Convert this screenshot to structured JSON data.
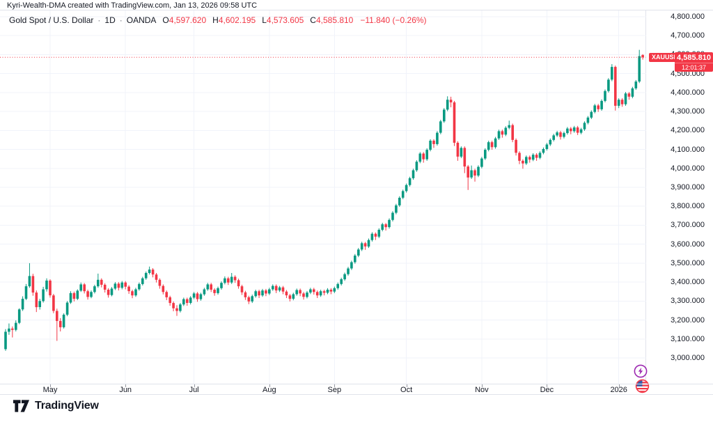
{
  "attribution": "Kyri-Wealth-DMA created with TradingView.com, Jan 13, 2026 09:58 UTC",
  "legend": {
    "title": "Gold Spot / U.S. Dollar",
    "separator": "·",
    "interval": "1D",
    "exchange": "OANDA",
    "o_label": "O",
    "o_value": "4,597.620",
    "h_label": "H",
    "h_value": "4,602.195",
    "l_label": "L",
    "l_value": "4,573.605",
    "c_label": "C",
    "c_value": "4,585.810",
    "change": "−11.840 (−0.26%)"
  },
  "price_tag": {
    "symbol": "XAUUSD",
    "price": "4,585.810",
    "countdown": "12:01:37"
  },
  "logo": {
    "text": "TradingView"
  },
  "icons": {
    "lightning": "lightning-event-marker",
    "flag": "us-economic-event-marker"
  },
  "colors": {
    "up": "#089981",
    "down": "#F23645",
    "accent_red": "#F23645",
    "grid": "#F0F3FA",
    "border": "#E0E3EB",
    "text": "#131722",
    "tick": "#9598A1",
    "purple": "#9C27B0",
    "flag_blue": "#3B5CA8"
  },
  "chart_data": {
    "type": "candlestick",
    "title": "Gold Spot / U.S. Dollar",
    "symbol": "XAUUSD",
    "interval": "1D",
    "exchange": "OANDA",
    "last_price": 4585.81,
    "last_change": -11.84,
    "last_change_pct": -0.26,
    "y_axis": {
      "min": 3000,
      "max": 4800,
      "step": 100,
      "labels": [
        "4,800.000",
        "4,700.000",
        "4,600.000",
        "4,500.000",
        "4,400.000",
        "4,300.000",
        "4,200.000",
        "4,100.000",
        "4,000.000",
        "3,900.000",
        "3,800.000",
        "3,700.000",
        "3,600.000",
        "3,500.000",
        "3,400.000",
        "3,300.000",
        "3,200.000",
        "3,100.000",
        "3,000.000"
      ]
    },
    "x_axis": {
      "ticks": [
        {
          "label": "May",
          "index": 13
        },
        {
          "label": "Jun",
          "index": 35
        },
        {
          "label": "Jul",
          "index": 55
        },
        {
          "label": "Aug",
          "index": 77
        },
        {
          "label": "Sep",
          "index": 96
        },
        {
          "label": "Oct",
          "index": 117
        },
        {
          "label": "Nov",
          "index": 139
        },
        {
          "label": "Dec",
          "index": 158
        },
        {
          "label": "2026",
          "index": 179
        }
      ]
    },
    "candles": [
      [
        3046,
        3152,
        3038,
        3138
      ],
      [
        3138,
        3182,
        3122,
        3155
      ],
      [
        3155,
        3166,
        3108,
        3148
      ],
      [
        3148,
        3198,
        3140,
        3185
      ],
      [
        3185,
        3262,
        3178,
        3256
      ],
      [
        3256,
        3325,
        3248,
        3312
      ],
      [
        3312,
        3390,
        3305,
        3378
      ],
      [
        3378,
        3500,
        3370,
        3432
      ],
      [
        3432,
        3444,
        3328,
        3345
      ],
      [
        3345,
        3356,
        3242,
        3268
      ],
      [
        3268,
        3312,
        3255,
        3300
      ],
      [
        3300,
        3375,
        3292,
        3362
      ],
      [
        3362,
        3420,
        3350,
        3408
      ],
      [
        3408,
        3415,
        3318,
        3330
      ],
      [
        3330,
        3338,
        3236,
        3248
      ],
      [
        3248,
        3260,
        3090,
        3195
      ],
      [
        3195,
        3210,
        3140,
        3162
      ],
      [
        3162,
        3235,
        3155,
        3228
      ],
      [
        3228,
        3300,
        3220,
        3292
      ],
      [
        3292,
        3352,
        3285,
        3342
      ],
      [
        3342,
        3350,
        3298,
        3312
      ],
      [
        3312,
        3362,
        3305,
        3355
      ],
      [
        3355,
        3398,
        3348,
        3388
      ],
      [
        3388,
        3395,
        3340,
        3352
      ],
      [
        3352,
        3360,
        3308,
        3322
      ],
      [
        3322,
        3356,
        3315,
        3348
      ],
      [
        3348,
        3386,
        3340,
        3378
      ],
      [
        3378,
        3445,
        3370,
        3412
      ],
      [
        3412,
        3420,
        3372,
        3386
      ],
      [
        3386,
        3394,
        3345,
        3360
      ],
      [
        3360,
        3368,
        3318,
        3332
      ],
      [
        3332,
        3374,
        3325,
        3366
      ],
      [
        3366,
        3400,
        3358,
        3392
      ],
      [
        3392,
        3400,
        3356,
        3370
      ],
      [
        3370,
        3406,
        3362,
        3398
      ],
      [
        3398,
        3405,
        3362,
        3376
      ],
      [
        3376,
        3384,
        3338,
        3352
      ],
      [
        3352,
        3360,
        3315,
        3330
      ],
      [
        3330,
        3370,
        3322,
        3362
      ],
      [
        3362,
        3398,
        3355,
        3390
      ],
      [
        3390,
        3428,
        3382,
        3420
      ],
      [
        3420,
        3456,
        3412,
        3448
      ],
      [
        3448,
        3482,
        3440,
        3466
      ],
      [
        3466,
        3474,
        3425,
        3440
      ],
      [
        3440,
        3448,
        3398,
        3412
      ],
      [
        3412,
        3420,
        3365,
        3380
      ],
      [
        3380,
        3388,
        3335,
        3348
      ],
      [
        3348,
        3356,
        3305,
        3320
      ],
      [
        3320,
        3328,
        3275,
        3290
      ],
      [
        3290,
        3298,
        3246,
        3262
      ],
      [
        3262,
        3278,
        3222,
        3248
      ],
      [
        3248,
        3290,
        3240,
        3282
      ],
      [
        3282,
        3318,
        3274,
        3310
      ],
      [
        3310,
        3318,
        3275,
        3290
      ],
      [
        3290,
        3326,
        3282,
        3318
      ],
      [
        3318,
        3348,
        3310,
        3340
      ],
      [
        3340,
        3348,
        3296,
        3310
      ],
      [
        3310,
        3344,
        3302,
        3336
      ],
      [
        3336,
        3370,
        3328,
        3362
      ],
      [
        3362,
        3396,
        3354,
        3388
      ],
      [
        3388,
        3396,
        3348,
        3360
      ],
      [
        3360,
        3368,
        3328,
        3342
      ],
      [
        3342,
        3376,
        3334,
        3368
      ],
      [
        3368,
        3404,
        3360,
        3396
      ],
      [
        3396,
        3430,
        3388,
        3420
      ],
      [
        3420,
        3428,
        3385,
        3398
      ],
      [
        3398,
        3448,
        3390,
        3428
      ],
      [
        3428,
        3436,
        3396,
        3410
      ],
      [
        3410,
        3418,
        3365,
        3378
      ],
      [
        3378,
        3386,
        3332,
        3346
      ],
      [
        3346,
        3354,
        3306,
        3320
      ],
      [
        3320,
        3328,
        3284,
        3298
      ],
      [
        3298,
        3334,
        3290,
        3326
      ],
      [
        3326,
        3360,
        3318,
        3352
      ],
      [
        3352,
        3360,
        3316,
        3330
      ],
      [
        3330,
        3364,
        3322,
        3356
      ],
      [
        3356,
        3364,
        3326,
        3340
      ],
      [
        3340,
        3370,
        3332,
        3362
      ],
      [
        3362,
        3388,
        3354,
        3380
      ],
      [
        3380,
        3388,
        3342,
        3356
      ],
      [
        3356,
        3380,
        3348,
        3372
      ],
      [
        3372,
        3380,
        3336,
        3350
      ],
      [
        3350,
        3358,
        3316,
        3330
      ],
      [
        3330,
        3338,
        3298,
        3312
      ],
      [
        3312,
        3344,
        3304,
        3336
      ],
      [
        3336,
        3366,
        3328,
        3358
      ],
      [
        3358,
        3366,
        3326,
        3340
      ],
      [
        3340,
        3348,
        3308,
        3322
      ],
      [
        3322,
        3353,
        3314,
        3345
      ],
      [
        3345,
        3370,
        3337,
        3362
      ],
      [
        3362,
        3370,
        3334,
        3348
      ],
      [
        3348,
        3356,
        3316,
        3330
      ],
      [
        3330,
        3360,
        3322,
        3352
      ],
      [
        3352,
        3360,
        3330,
        3344
      ],
      [
        3344,
        3368,
        3336,
        3360
      ],
      [
        3360,
        3368,
        3336,
        3350
      ],
      [
        3350,
        3376,
        3342,
        3368
      ],
      [
        3368,
        3398,
        3360,
        3390
      ],
      [
        3390,
        3423,
        3382,
        3415
      ],
      [
        3415,
        3450,
        3407,
        3442
      ],
      [
        3442,
        3480,
        3434,
        3472
      ],
      [
        3472,
        3513,
        3464,
        3505
      ],
      [
        3505,
        3548,
        3497,
        3540
      ],
      [
        3540,
        3580,
        3532,
        3572
      ],
      [
        3572,
        3613,
        3564,
        3605
      ],
      [
        3605,
        3612,
        3570,
        3588
      ],
      [
        3588,
        3630,
        3580,
        3622
      ],
      [
        3622,
        3663,
        3614,
        3655
      ],
      [
        3655,
        3662,
        3622,
        3640
      ],
      [
        3640,
        3684,
        3632,
        3676
      ],
      [
        3676,
        3713,
        3668,
        3705
      ],
      [
        3705,
        3712,
        3672,
        3690
      ],
      [
        3690,
        3736,
        3682,
        3728
      ],
      [
        3728,
        3774,
        3720,
        3766
      ],
      [
        3766,
        3813,
        3758,
        3805
      ],
      [
        3805,
        3853,
        3797,
        3845
      ],
      [
        3845,
        3888,
        3837,
        3880
      ],
      [
        3880,
        3920,
        3872,
        3912
      ],
      [
        3912,
        3956,
        3904,
        3948
      ],
      [
        3948,
        3998,
        3940,
        3990
      ],
      [
        3990,
        4043,
        3982,
        4035
      ],
      [
        4035,
        4086,
        4027,
        4078
      ],
      [
        4078,
        4086,
        4030,
        4048
      ],
      [
        4048,
        4106,
        4040,
        4098
      ],
      [
        4098,
        4154,
        4090,
        4146
      ],
      [
        4146,
        4154,
        4108,
        4128
      ],
      [
        4128,
        4196,
        4120,
        4188
      ],
      [
        4188,
        4256,
        4180,
        4248
      ],
      [
        4248,
        4318,
        4240,
        4310
      ],
      [
        4310,
        4380,
        4302,
        4362
      ],
      [
        4362,
        4378,
        4322,
        4348
      ],
      [
        4348,
        4356,
        4118,
        4135
      ],
      [
        4135,
        4143,
        4040,
        4062
      ],
      [
        4062,
        4116,
        4054,
        4108
      ],
      [
        4108,
        4116,
        3975,
        4010
      ],
      [
        4010,
        4018,
        3886,
        3952
      ],
      [
        3952,
        4015,
        3944,
        3990
      ],
      [
        3990,
        3998,
        3930,
        3962
      ],
      [
        3962,
        4016,
        3954,
        4008
      ],
      [
        4008,
        4060,
        4000,
        4052
      ],
      [
        4052,
        4106,
        4044,
        4098
      ],
      [
        4098,
        4146,
        4090,
        4138
      ],
      [
        4138,
        4146,
        4098,
        4112
      ],
      [
        4112,
        4166,
        4104,
        4158
      ],
      [
        4158,
        4204,
        4150,
        4196
      ],
      [
        4196,
        4204,
        4162,
        4178
      ],
      [
        4178,
        4222,
        4170,
        4214
      ],
      [
        4214,
        4252,
        4206,
        4228
      ],
      [
        4228,
        4236,
        4138,
        4150
      ],
      [
        4150,
        4158,
        4068,
        4082
      ],
      [
        4082,
        4090,
        4022,
        4040
      ],
      [
        4040,
        4048,
        3998,
        4026
      ],
      [
        4026,
        4068,
        4018,
        4060
      ],
      [
        4060,
        4068,
        4030,
        4046
      ],
      [
        4046,
        4080,
        4038,
        4072
      ],
      [
        4072,
        4080,
        4040,
        4056
      ],
      [
        4056,
        4090,
        4048,
        4082
      ],
      [
        4082,
        4110,
        4074,
        4102
      ],
      [
        4102,
        4134,
        4094,
        4126
      ],
      [
        4126,
        4158,
        4118,
        4150
      ],
      [
        4150,
        4182,
        4142,
        4174
      ],
      [
        4174,
        4198,
        4166,
        4190
      ],
      [
        4190,
        4198,
        4152,
        4166
      ],
      [
        4166,
        4194,
        4158,
        4186
      ],
      [
        4186,
        4218,
        4178,
        4210
      ],
      [
        4210,
        4218,
        4180,
        4196
      ],
      [
        4196,
        4224,
        4188,
        4216
      ],
      [
        4216,
        4224,
        4176,
        4188
      ],
      [
        4188,
        4214,
        4180,
        4206
      ],
      [
        4206,
        4248,
        4198,
        4240
      ],
      [
        4240,
        4276,
        4232,
        4268
      ],
      [
        4268,
        4306,
        4260,
        4298
      ],
      [
        4298,
        4340,
        4290,
        4332
      ],
      [
        4332,
        4340,
        4298,
        4312
      ],
      [
        4312,
        4364,
        4304,
        4356
      ],
      [
        4356,
        4416,
        4348,
        4408
      ],
      [
        4408,
        4476,
        4400,
        4468
      ],
      [
        4468,
        4550,
        4460,
        4535
      ],
      [
        4535,
        4542,
        4305,
        4330
      ],
      [
        4330,
        4370,
        4318,
        4362
      ],
      [
        4362,
        4370,
        4325,
        4338
      ],
      [
        4338,
        4403,
        4330,
        4395
      ],
      [
        4395,
        4403,
        4362,
        4378
      ],
      [
        4378,
        4430,
        4370,
        4422
      ],
      [
        4422,
        4466,
        4414,
        4458
      ],
      [
        4458,
        4625,
        4450,
        4592
      ],
      [
        4597.62,
        4602.195,
        4573.605,
        4585.81
      ]
    ]
  }
}
